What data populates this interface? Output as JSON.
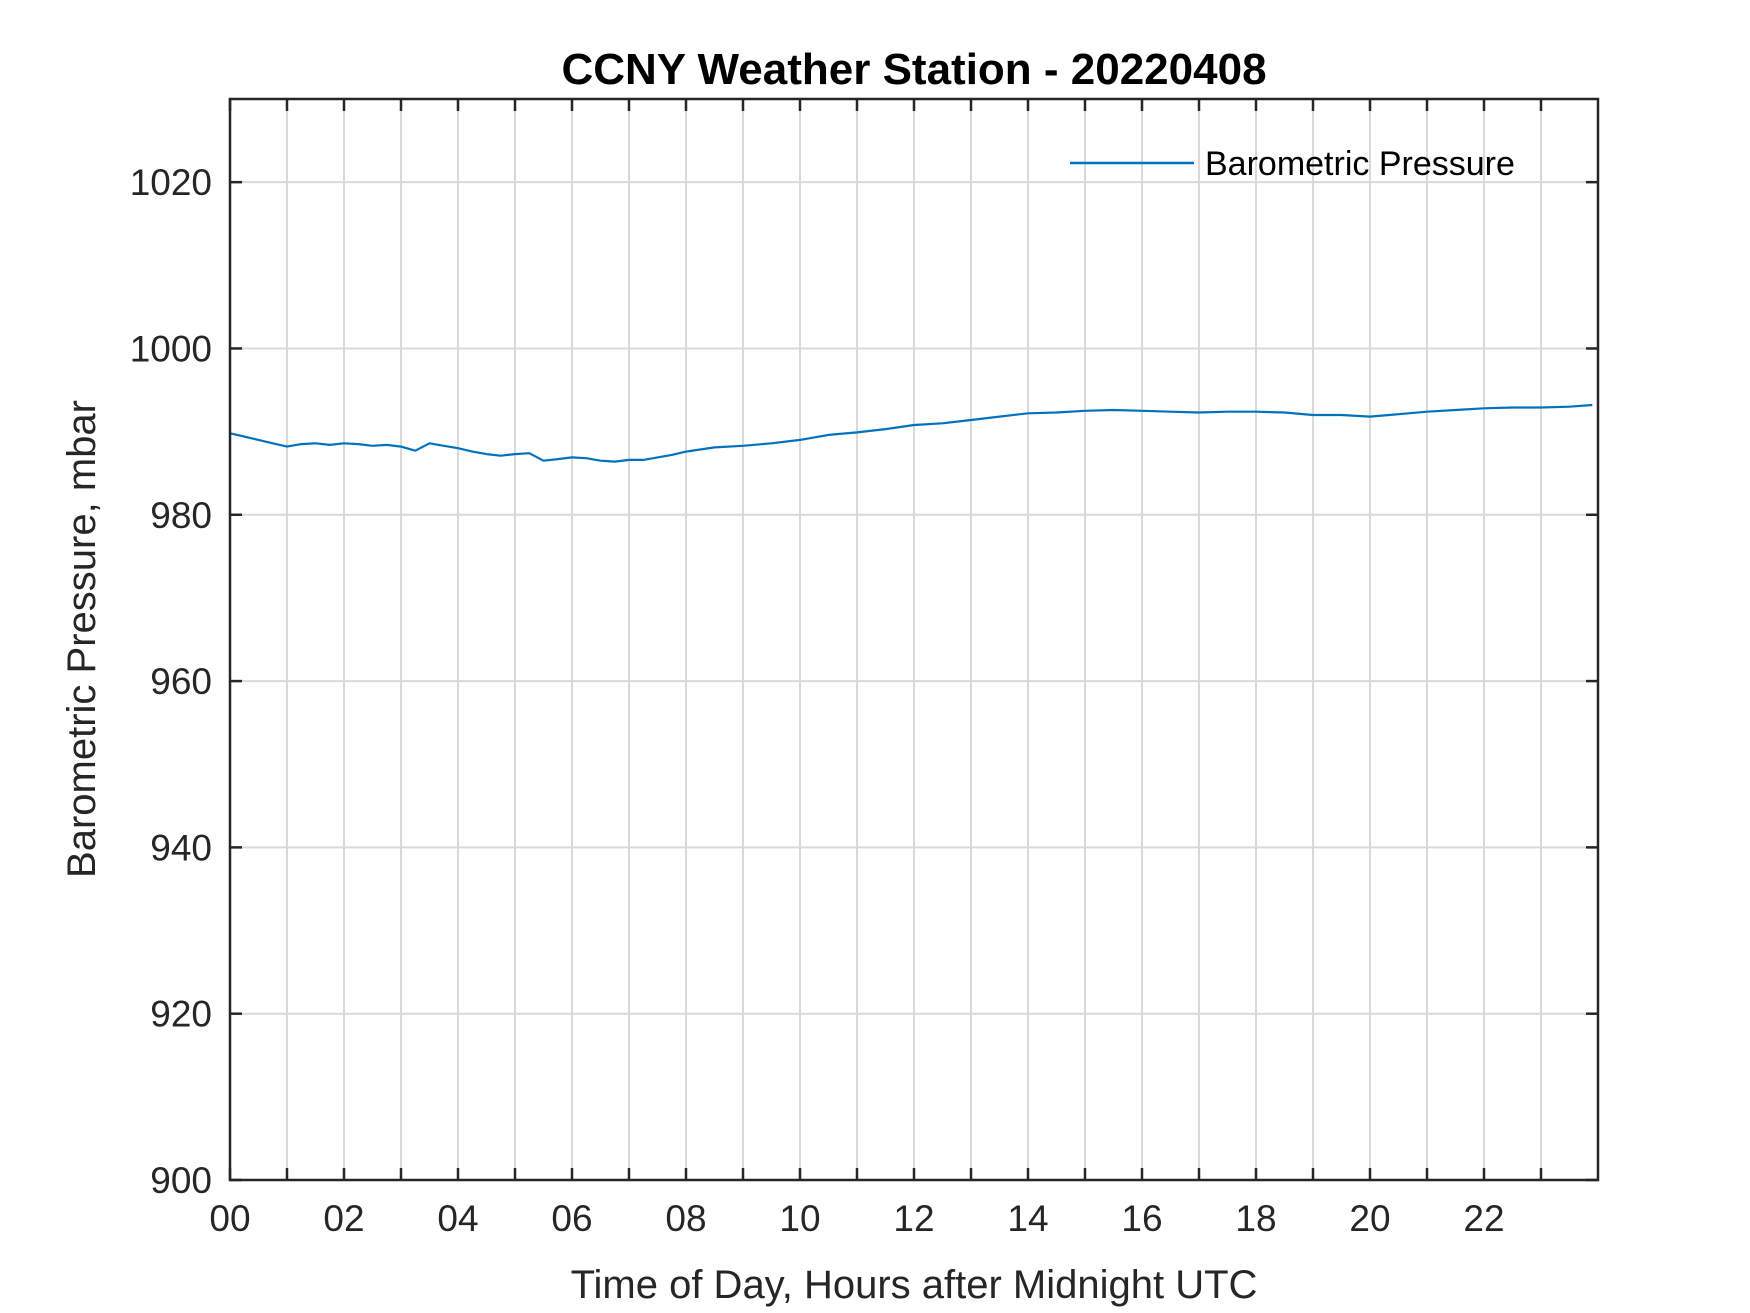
{
  "chart_data": {
    "type": "line",
    "title": "CCNY Weather Station - 20220408",
    "xlabel": "Time of Day, Hours after Midnight UTC",
    "ylabel": "Barometric Pressure, mbar",
    "xlim": [
      0,
      24
    ],
    "ylim": [
      900,
      1030
    ],
    "x_ticks": [
      0,
      2,
      4,
      6,
      8,
      10,
      12,
      14,
      16,
      18,
      20,
      22
    ],
    "x_tick_labels": [
      "00",
      "02",
      "04",
      "06",
      "08",
      "10",
      "12",
      "14",
      "16",
      "18",
      "20",
      "22"
    ],
    "y_ticks": [
      900,
      920,
      940,
      960,
      980,
      1000,
      1020
    ],
    "y_tick_labels": [
      "900",
      "920",
      "940",
      "960",
      "980",
      "1000",
      "1020"
    ],
    "grid": true,
    "legend_position": "top-right",
    "series": [
      {
        "name": "Barometric Pressure",
        "color": "#0072bd",
        "x": [
          0.0,
          0.25,
          0.5,
          0.75,
          1.0,
          1.25,
          1.5,
          1.75,
          2.0,
          2.25,
          2.5,
          2.75,
          3.0,
          3.25,
          3.5,
          3.75,
          4.0,
          4.25,
          4.5,
          4.75,
          5.0,
          5.25,
          5.5,
          5.75,
          6.0,
          6.25,
          6.5,
          6.75,
          7.0,
          7.25,
          7.5,
          7.75,
          8.0,
          8.5,
          9.0,
          9.5,
          10.0,
          10.5,
          11.0,
          11.5,
          12.0,
          12.5,
          13.0,
          13.5,
          14.0,
          14.5,
          15.0,
          15.5,
          16.0,
          16.5,
          17.0,
          17.5,
          18.0,
          18.5,
          19.0,
          19.5,
          20.0,
          20.5,
          21.0,
          21.5,
          22.0,
          22.5,
          23.0,
          23.5,
          23.9
        ],
        "values": [
          989.8,
          989.4,
          989.0,
          988.6,
          988.2,
          988.5,
          988.6,
          988.4,
          988.6,
          988.5,
          988.3,
          988.4,
          988.2,
          987.7,
          988.6,
          988.3,
          988.0,
          987.6,
          987.3,
          987.1,
          987.3,
          987.4,
          986.5,
          986.7,
          986.9,
          986.8,
          986.5,
          986.4,
          986.6,
          986.6,
          986.9,
          987.2,
          987.6,
          988.1,
          988.3,
          988.6,
          989.0,
          989.6,
          989.9,
          990.3,
          990.8,
          991.0,
          991.4,
          991.8,
          992.2,
          992.3,
          992.5,
          992.6,
          992.5,
          992.4,
          992.3,
          992.4,
          992.4,
          992.3,
          992.0,
          992.0,
          991.8,
          992.1,
          992.4,
          992.6,
          992.8,
          992.9,
          992.9,
          993.0,
          993.2
        ]
      }
    ]
  }
}
